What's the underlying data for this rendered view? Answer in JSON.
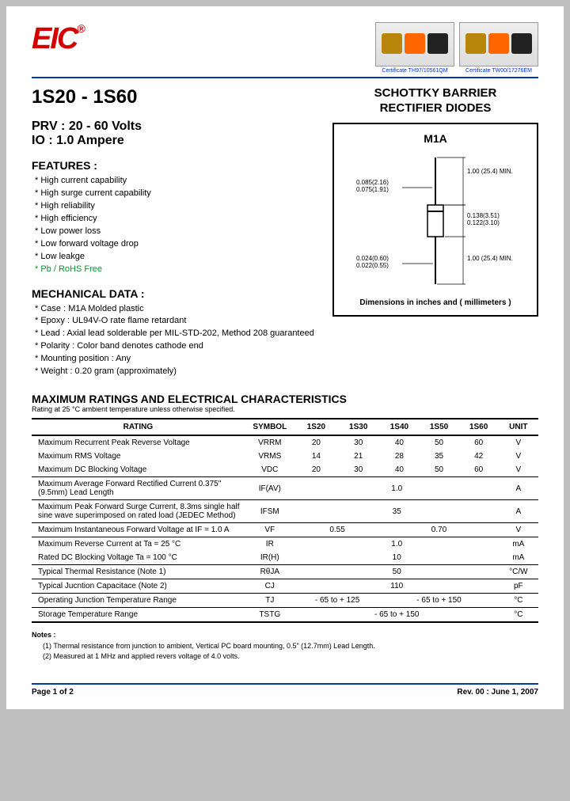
{
  "header": {
    "logo_text": "EIC",
    "logo_reg": "®",
    "certs": [
      {
        "label": "Certificate TH97/10561QM"
      },
      {
        "label": "Certificate TW00/17276EM"
      }
    ]
  },
  "title": {
    "part_range": "1S20 - 1S60",
    "product_name_l1": "SCHOTTKY BARRIER",
    "product_name_l2": "RECTIFIER DIODES"
  },
  "specs": {
    "prv_label": "PRV :",
    "prv_value": "20 - 60 Volts",
    "io_label": "IO :",
    "io_value": "1.0 Ampere"
  },
  "features": {
    "heading": "FEATURES :",
    "items": [
      "High current capability",
      "High surge current capability",
      "High reliability",
      "High efficiency",
      "Low power loss",
      "Low forward voltage drop",
      "Low leakge"
    ],
    "green_item": "Pb / RoHS Free"
  },
  "mechanical": {
    "heading": "MECHANICAL  DATA :",
    "items": [
      "Case :  M1A  Molded plastic",
      "Epoxy : UL94V-O rate flame retardant",
      "Lead : Axial lead solderable per MIL-STD-202, Method 208 guaranteed",
      "Polarity : Color band denotes cathode end",
      "Mounting  position :  Any",
      "Weight :    0.20  gram (approximately)"
    ]
  },
  "diagram": {
    "package": "M1A",
    "dims": {
      "lead_dia_max": "0.085(2.16)",
      "lead_dia_min": "0.075(1.91)",
      "lead_len": "1.00 (25.4) MIN.",
      "body_len_max": "0.138(3.51)",
      "body_len_min": "0.122(3.10)",
      "body_dia_max": "0.024(0.60)",
      "body_dia_min": "0.022(0.55)"
    },
    "footer": "Dimensions in inches and ( millimeters )"
  },
  "ratings": {
    "heading": "MAXIMUM  RATINGS  AND  ELECTRICAL  CHARACTERISTICS",
    "sub": "Rating at  25 °C ambient temperature unless otherwise specified.",
    "columns": [
      "RATING",
      "SYMBOL",
      "1S20",
      "1S30",
      "1S40",
      "1S50",
      "1S60",
      "UNIT"
    ],
    "rows": [
      {
        "label": "Maximum Recurrent Peak Reverse Voltage",
        "symbol": "VRRM",
        "cells": [
          "20",
          "30",
          "40",
          "50",
          "60"
        ],
        "unit": "V",
        "divider": false
      },
      {
        "label": "Maximum RMS Voltage",
        "symbol": "VRMS",
        "cells": [
          "14",
          "21",
          "28",
          "35",
          "42"
        ],
        "unit": "V",
        "divider": false
      },
      {
        "label": "Maximum DC Blocking Voltage",
        "symbol": "VDC",
        "cells": [
          "20",
          "30",
          "40",
          "50",
          "60"
        ],
        "unit": "V",
        "divider": true
      },
      {
        "label": "Maximum Average Forward Rectified Current 0.375\" (9.5mm) Lead Length",
        "symbol": "IF(AV)",
        "span": "1.0",
        "unit": "A",
        "divider": true
      },
      {
        "label": "Maximum Peak Forward Surge Current, 8.3ms single half sine wave superimposed on rated load (JEDEC Method)",
        "symbol": "IFSM",
        "span": "35",
        "unit": "A",
        "divider": true
      },
      {
        "label": "Maximum Instantaneous Forward Voltage at IF = 1.0 A",
        "symbol": "VF",
        "cells2": [
          "0.55",
          "0.70"
        ],
        "unit": "V",
        "divider": true
      },
      {
        "label": "Maximum Reverse Current at            Ta = 25 °C",
        "symbol": "IR",
        "span": "1.0",
        "unit": "mA",
        "divider": false
      },
      {
        "label": "Rated DC Blocking Voltage          Ta = 100 °C",
        "symbol": "IR(H)",
        "span": "10",
        "unit": "mA",
        "divider": true
      },
      {
        "label": "Typical Thermal Resistance (Note 1)",
        "symbol": "RθJA",
        "span": "50",
        "unit": "°C/W",
        "divider": true
      },
      {
        "label": "Typical Jucntion Capacitace (Note 2)",
        "symbol": "CJ",
        "span": "110",
        "unit": "pF",
        "divider": true
      },
      {
        "label": "Operating Junction Temperature Range",
        "symbol": "TJ",
        "cells2": [
          "- 65 to + 125",
          "- 65 to + 150"
        ],
        "unit": "°C",
        "divider": true
      },
      {
        "label": "Storage Temperature Range",
        "symbol": "TSTG",
        "span": "- 65 to + 150",
        "unit": "°C",
        "divider": false,
        "final": true
      }
    ]
  },
  "notes": {
    "heading": "Notes :",
    "items": [
      "(1) Thermal resistance from junction to ambient, Vertical PC board mounting, 0.5\" (12.7mm) Lead Length.",
      "(2) Measured at 1 MHz and applied revers voltage of 4.0 volts."
    ]
  },
  "footer": {
    "page": "Page 1 of 2",
    "rev": "Rev. 00 : June 1, 2007"
  },
  "colors": {
    "brand_red": "#d40000",
    "rule_blue": "#003d9e",
    "feature_green": "#009933"
  }
}
